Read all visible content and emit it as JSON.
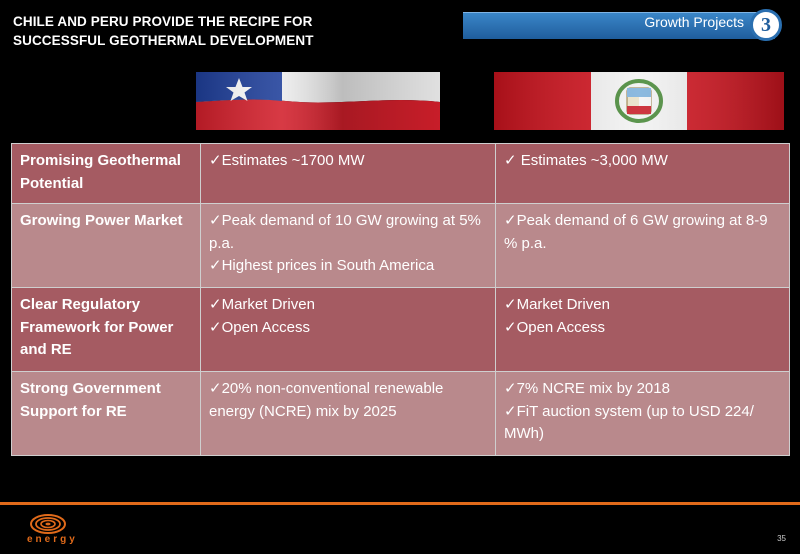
{
  "slide": {
    "title_line1": "CHILE AND PERU PROVIDE THE RECIPE FOR",
    "title_line2": "SUCCESSFUL GEOTHERMAL DEVELOPMENT",
    "banner_label": "Growth Projects",
    "banner_number": "3",
    "page_number": "35",
    "logo_text": "energy"
  },
  "colors": {
    "row_dark": "#a55b62",
    "row_light": "#b9898c",
    "banner_blue": "#1f5d9c",
    "accent_orange": "#e06a1a"
  },
  "flags": [
    {
      "country": "chile",
      "icon": "chile-flag-icon"
    },
    {
      "country": "peru",
      "icon": "peru-flag-icon"
    }
  ],
  "table": {
    "rows": [
      {
        "head": "Promising Geothermal Potential",
        "chile": [
          "✓Estimates  ~1700 MW"
        ],
        "peru": [
          "✓ Estimates ~3,000 MW"
        ]
      },
      {
        "head": "Growing Power Market",
        "chile": [
          "✓Peak demand of 10 GW growing at 5% p.a.",
          "✓Highest prices in South America"
        ],
        "peru": [
          "✓Peak demand of 6 GW growing at 8-9 % p.a."
        ]
      },
      {
        "head": "Clear Regulatory Framework for Power and RE",
        "chile": [
          "✓Market Driven",
          "✓Open Access"
        ],
        "peru": [
          "✓Market Driven",
          "✓Open Access"
        ]
      },
      {
        "head": "Strong Government Support for RE",
        "chile": [
          "✓20% non-conventional renewable energy (NCRE) mix by 2025"
        ],
        "peru": [
          "✓7% NCRE mix by 2018",
          "✓FiT auction system (up to USD 224/ MWh)"
        ]
      }
    ]
  }
}
